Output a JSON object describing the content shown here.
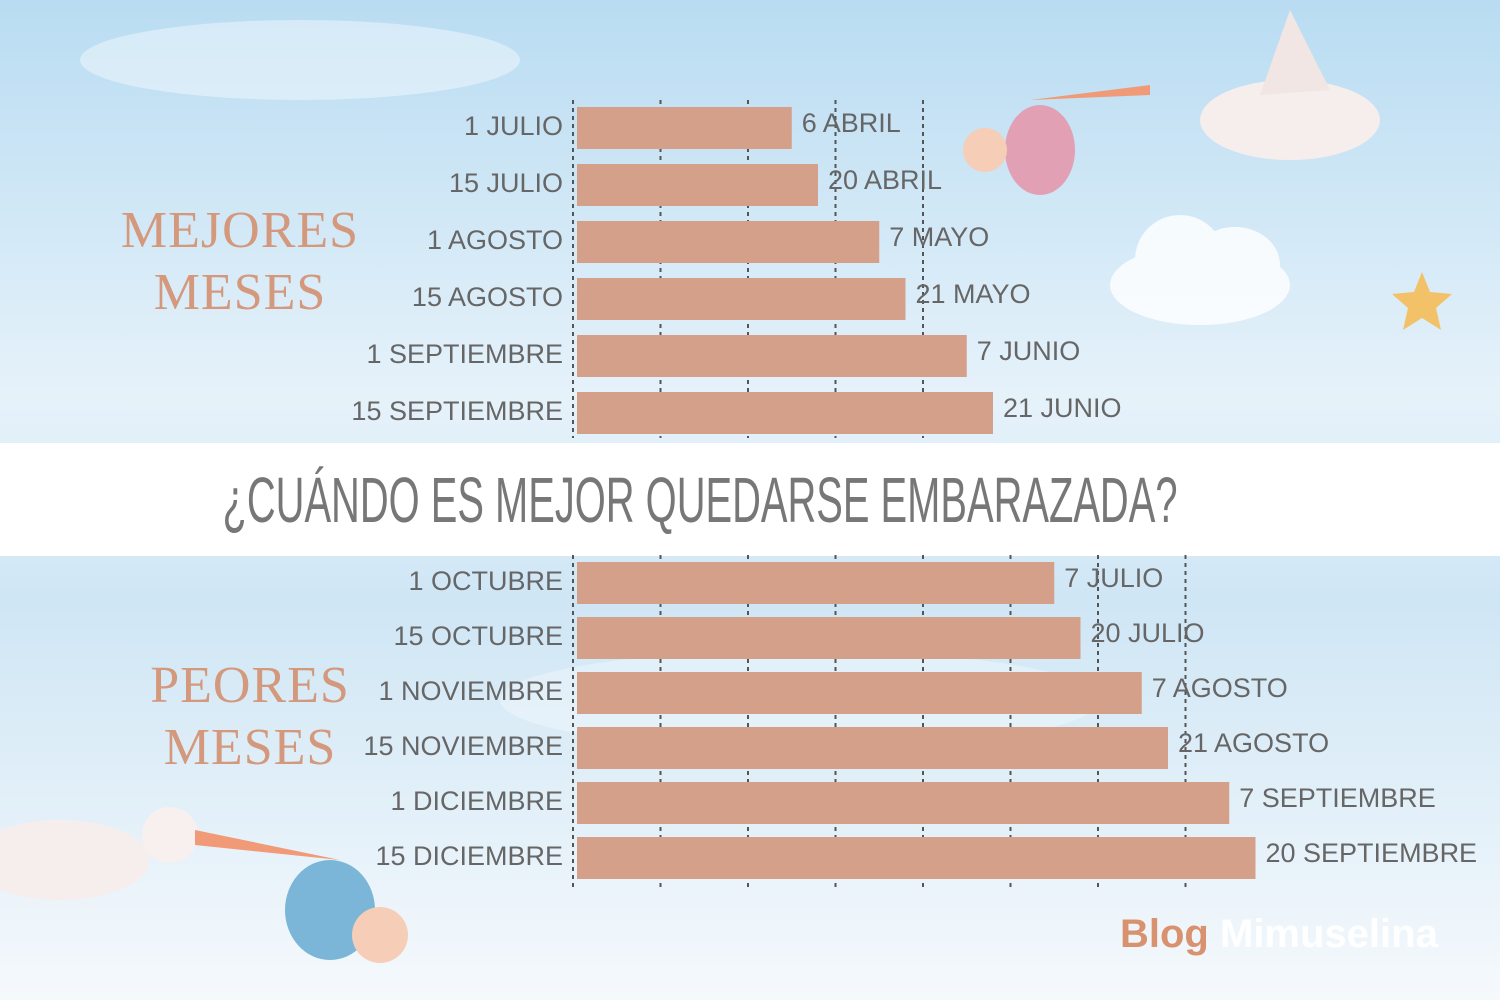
{
  "title": "¿CUÁNDO ES MEJOR QUEDARSE EMBARAZADA?",
  "brand": {
    "first": "Blog",
    "second": "Mimuselina"
  },
  "chart_data": [
    {
      "type": "bar",
      "orientation": "horizontal",
      "title": "MEJORES MESES",
      "color": "#d4a08a",
      "grid": true,
      "categories": [
        "1 JULIO",
        "15 JULIO",
        "1 AGOSTO",
        "15 AGOSTO",
        "1 SEPTIEMBRE",
        "15 SEPTIEMBRE"
      ],
      "values": [
        2.5,
        2.8,
        3.5,
        3.8,
        4.5,
        4.8
      ],
      "end_labels": [
        "6 ABRIL",
        "20 ABRIL",
        "7 MAYO",
        "21 MAYO",
        "7 JUNIO",
        "21 JUNIO"
      ],
      "xlim": [
        0,
        8
      ],
      "xticks": [
        0,
        1,
        2,
        3,
        4
      ]
    },
    {
      "type": "bar",
      "orientation": "horizontal",
      "title": "PEORES MESES",
      "color": "#d4a08a",
      "grid": true,
      "categories": [
        "1 OCTUBRE",
        "15 OCTUBRE",
        "1 NOVIEMBRE",
        "15 NOVIEMBRE",
        "1 DICIEMBRE",
        "15 DICIEMBRE"
      ],
      "values": [
        5.5,
        5.8,
        6.5,
        6.8,
        7.5,
        7.8
      ],
      "end_labels": [
        "7 JULIO",
        "20 JULIO",
        "7 AGOSTO",
        "21 AGOSTO",
        "7 SEPTIEMBRE",
        "20 SEPTIEMBRE"
      ],
      "xlim": [
        0,
        8
      ],
      "xticks": [
        0,
        1,
        2,
        3,
        4,
        5,
        6,
        7
      ]
    }
  ]
}
